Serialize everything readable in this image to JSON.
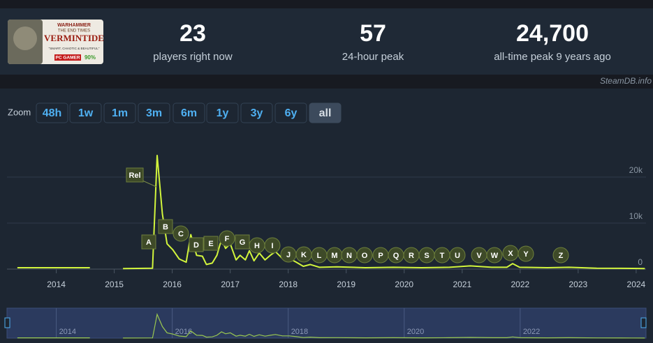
{
  "logo": {
    "kicker": "WARHAMMER",
    "subtitle": "THE END TIMES",
    "title": "VERMINTIDE",
    "quote": "\"SMART, CHAOTIC & BEAUTIFUL\"",
    "badge": "PC GAMER",
    "score": "90%"
  },
  "stats": [
    {
      "value": "23",
      "label": "players right now"
    },
    {
      "value": "57",
      "label": "24-hour peak"
    },
    {
      "value": "24,700",
      "label": "all-time peak 9 years ago"
    }
  ],
  "watermark": "SteamDB.info",
  "zoom": {
    "label": "Zoom",
    "buttons": [
      "48h",
      "1w",
      "1m",
      "3m",
      "6m",
      "1y",
      "3y",
      "6y",
      "all"
    ],
    "active": "all"
  },
  "chart_data": {
    "type": "line",
    "color": "#d2f53c",
    "grid": true,
    "x": [
      2013.33,
      2014.58,
      null,
      2015.15,
      2015.66,
      2015.74,
      2015.83,
      2015.91,
      2016.01,
      2016.12,
      2016.24,
      2016.32,
      2016.42,
      2016.52,
      2016.59,
      2016.69,
      2016.77,
      2016.85,
      2016.92,
      2017.0,
      2017.1,
      2017.17,
      2017.26,
      2017.33,
      2017.41,
      2017.5,
      2017.6,
      2017.69,
      2017.78,
      2017.9,
      2018.02,
      2018.14,
      2018.26,
      2018.38,
      2018.54,
      2018.84,
      2019.33,
      2019.81,
      2020.3,
      2020.78,
      2021.14,
      2021.51,
      2021.77,
      2021.87,
      2021.99,
      2022.47,
      2022.84,
      2023.32,
      2023.93,
      2024.15
    ],
    "values": [
      300,
      300,
      null,
      100,
      200,
      24700,
      12000,
      5500,
      4200,
      2200,
      1500,
      7500,
      3000,
      2800,
      1000,
      1300,
      3000,
      6500,
      4500,
      5500,
      2000,
      3000,
      2000,
      4000,
      1800,
      3500,
      2000,
      3000,
      3800,
      2300,
      2300,
      1500,
      600,
      1000,
      400,
      500,
      300,
      400,
      300,
      400,
      700,
      400,
      400,
      1200,
      400,
      300,
      400,
      200,
      150,
      100
    ],
    "xlim": [
      2013.15,
      2024.17
    ],
    "xticks": [
      2014,
      2015,
      2016,
      2017,
      2018,
      2019,
      2020,
      2021,
      2022,
      2023,
      2024
    ],
    "ylim": [
      0,
      29700
    ],
    "yticks": [
      {
        "value": 0,
        "label": "0"
      },
      {
        "value": 10000,
        "label": "10k"
      },
      {
        "value": 20000,
        "label": "20k"
      }
    ],
    "annotations": [
      "Rel",
      "A",
      "B",
      "C",
      "D",
      "E",
      "F",
      "G",
      "H",
      "I",
      "J",
      "K",
      "L",
      "M",
      "N",
      "O",
      "P",
      "Q",
      "R",
      "S",
      "T",
      "U",
      "V",
      "W",
      "X",
      "Y",
      "Z"
    ],
    "navigator_xticks": [
      2014,
      2016,
      2018,
      2020,
      2022
    ]
  }
}
